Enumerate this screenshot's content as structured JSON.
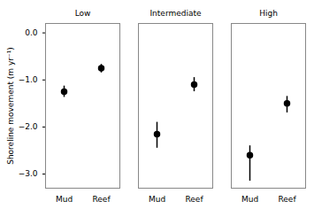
{
  "chart_data": [
    {
      "type": "scatter",
      "title": "Low",
      "ylabel": "Shoreline movement (m yr⁻¹)",
      "categories": [
        "Mud",
        "Reef"
      ],
      "values": [
        -1.25,
        -0.75
      ],
      "errors_upper": [
        0.12,
        0.08
      ],
      "errors_lower": [
        0.12,
        0.1
      ],
      "color": "#000000",
      "marker": "circle",
      "ylim": [
        -3.3,
        0.2
      ],
      "yticks": [
        0,
        -1,
        -2,
        -3
      ]
    },
    {
      "type": "scatter",
      "title": "Intermediate",
      "categories": [
        "Mud",
        "Reef"
      ],
      "values": [
        -2.15,
        -1.1
      ],
      "errors_upper": [
        0.25,
        0.15
      ],
      "errors_lower": [
        0.3,
        0.15
      ],
      "color": "#000000",
      "marker": "circle",
      "ylim": [
        -3.3,
        0.2
      ],
      "tick_labels": "x"
    },
    {
      "type": "scatter",
      "title": "High",
      "categories": [
        "Mud",
        "Reef"
      ],
      "values": [
        -2.6,
        -1.5
      ],
      "errors_upper": [
        0.2,
        0.15
      ],
      "errors_lower": [
        0.55,
        0.2
      ],
      "color": "#000000",
      "marker": "circle",
      "ylim": [
        -3.3,
        0.2
      ],
      "tick_labels": "x"
    }
  ]
}
